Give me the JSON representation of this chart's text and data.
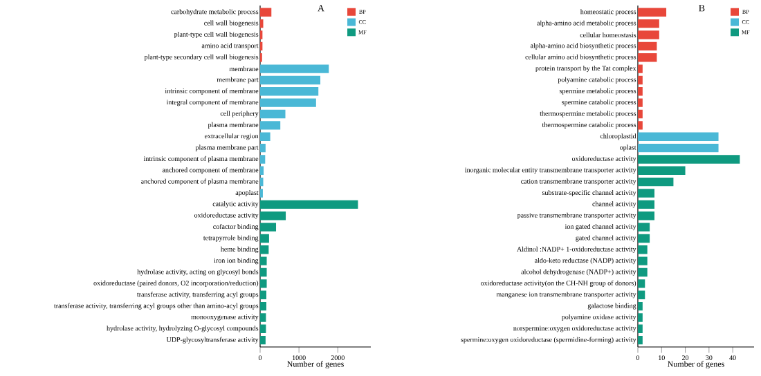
{
  "chart_data": [
    {
      "type": "bar",
      "orientation": "horizontal",
      "title": "A",
      "xlabel": "Number of genes",
      "legend": "top right",
      "categories": [
        "carbohydrate metabolic process",
        "cell wall biogenesis",
        "plant-type cell wall biogenesis",
        "amino acid transport",
        "plant-type secondary cell wall biogenesis",
        "membrane",
        "membrane part",
        "intrinsic component of membrane",
        "integral component of membrane",
        "cell periphery",
        "plasma membrane",
        "extracellular region",
        "plasma membrane part",
        "intrinsic component of plasma membrane",
        "anchored component of membrane",
        "anchored component of plasma membrane",
        "apoplast",
        "catalytic activity",
        "oxidoreductase activity",
        "cofactor binding",
        "tetrapyrrole binding",
        "heme binding",
        "iron ion binding",
        "hydrolase activity, acting on glycosyl bonds",
        "oxidoreductase (paired donors, O2 incorporation/reduction)",
        "transferase activity, transferring acyl groups",
        "transferase activity, transferring acyl groups other than amino-acyl groups",
        "monooxygenase activity",
        "hydrolase activity, hydrolyzing O-glycosyl compounds",
        "UDP-glycosyltransferase activity"
      ],
      "series": [
        {
          "name": "BP",
          "color": "#e8473a",
          "values": [
            290,
            80,
            60,
            60,
            50,
            null,
            null,
            null,
            null,
            null,
            null,
            null,
            null,
            null,
            null,
            null,
            null,
            null,
            null,
            null,
            null,
            null,
            null,
            null,
            null,
            null,
            null,
            null,
            null,
            null
          ]
        },
        {
          "name": "CC",
          "color": "#4ab8d6",
          "values": [
            null,
            null,
            null,
            null,
            null,
            1770,
            1550,
            1500,
            1440,
            650,
            520,
            260,
            140,
            130,
            90,
            80,
            70,
            null,
            null,
            null,
            null,
            null,
            null,
            null,
            null,
            null,
            null,
            null,
            null,
            null
          ]
        },
        {
          "name": "MF",
          "color": "#0f9a80",
          "values": [
            null,
            null,
            null,
            null,
            null,
            null,
            null,
            null,
            null,
            null,
            null,
            null,
            null,
            null,
            null,
            null,
            null,
            2520,
            660,
            410,
            230,
            220,
            170,
            170,
            170,
            160,
            160,
            150,
            150,
            140
          ]
        }
      ],
      "xlim": [
        0,
        2850
      ],
      "xticks": [
        0,
        1000,
        2000
      ]
    },
    {
      "type": "bar",
      "orientation": "horizontal",
      "title": "B",
      "xlabel": "Number of genes",
      "legend": "top right",
      "categories": [
        "homeostatic process",
        "alpha-amino acid metabolic process",
        "cellular homeostasis",
        "alpha-amino acid biosynthetic process",
        "cellular amino acid biosynthetic process",
        "protein transport by the Tat complex",
        "polyamine catabolic process",
        "spermine metabolic process",
        "spermine catabolic process",
        "thermospermine metabolic process",
        "thermospermine catabolic process",
        "chloroplastid",
        "oplast",
        "oxidoreductase activity",
        "inorganic molecular entity transmembrane transporter activity",
        "cation transmembrane transporter activity",
        "substrate-specific channel activity",
        "channel activity",
        "passive transmembrane transporter activity",
        "ion gated channel activity",
        "gated channel activity",
        "Aldinol :NADP+ 1-oxidoreductase activity",
        "aldo-keto reductase (NADP) activity",
        "alcohol dehydrogenase (NADP+) activity",
        "oxidoreductase activity(on the CH-NH group of donors)",
        "manganese ion transmembrane transporter activity",
        "galactose binding",
        "polyamine oxidase activity",
        "norspermine:oxygen oxidoreductase activity",
        "spermine:oxygen oxidoreductase (spermidine-forming) activity"
      ],
      "series": [
        {
          "name": "BP",
          "color": "#e8473a",
          "values": [
            12,
            9,
            9,
            8,
            8,
            2,
            2,
            2,
            2,
            2,
            2,
            null,
            null,
            null,
            null,
            null,
            null,
            null,
            null,
            null,
            null,
            null,
            null,
            null,
            null,
            null,
            null,
            null,
            null,
            null
          ]
        },
        {
          "name": "CC",
          "color": "#4ab8d6",
          "values": [
            null,
            null,
            null,
            null,
            null,
            null,
            null,
            null,
            null,
            null,
            null,
            34,
            34,
            null,
            null,
            null,
            null,
            null,
            null,
            null,
            null,
            null,
            null,
            null,
            null,
            null,
            null,
            null,
            null,
            null
          ]
        },
        {
          "name": "MF",
          "color": "#0f9a80",
          "values": [
            null,
            null,
            null,
            null,
            null,
            null,
            null,
            null,
            null,
            null,
            null,
            null,
            null,
            43,
            20,
            15,
            7,
            7,
            7,
            5,
            5,
            4,
            4,
            4,
            3,
            3,
            2,
            2,
            2,
            2
          ]
        }
      ],
      "xlim": [
        0,
        49
      ],
      "xticks": [
        0,
        10,
        20,
        30,
        40
      ]
    }
  ]
}
